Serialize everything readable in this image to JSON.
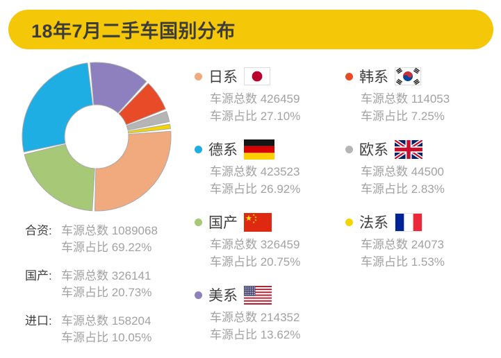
{
  "title": "18年7月二手车国别分布",
  "colors": {
    "header_accent": "#F4C708",
    "title_text": "#3C3C3C",
    "stats_text": "#A2A2A2",
    "label_text": "#3E3E3E",
    "slice_outline": "#A9A9A9"
  },
  "chart_data": {
    "type": "donut",
    "title": "18年7月二手车国别分布",
    "start_angle_deg": -6,
    "gap_deg": 2,
    "inner_radius_ratio": 0.43,
    "slices": [
      {
        "id": "us",
        "label": "美系",
        "pct": 13.62,
        "count": 214352,
        "color": "#8E7FBE"
      },
      {
        "id": "kr",
        "label": "韩系",
        "pct": 7.25,
        "count": 114053,
        "color": "#E74B28"
      },
      {
        "id": "eu",
        "label": "欧系",
        "pct": 2.83,
        "count": 44500,
        "color": "#B5B5B5"
      },
      {
        "id": "fr",
        "label": "法系",
        "pct": 1.53,
        "count": 24073,
        "color": "#F3D503"
      },
      {
        "id": "jp",
        "label": "日系",
        "pct": 27.1,
        "count": 426459,
        "color": "#F1A97E"
      },
      {
        "id": "cn",
        "label": "国产",
        "pct": 20.75,
        "count": 326459,
        "color": "#A6C877"
      },
      {
        "id": "de",
        "label": "德系",
        "pct": 26.92,
        "count": 423523,
        "color": "#1EAEE4"
      }
    ]
  },
  "summary": {
    "label_total": "车源总数",
    "label_share": "车源占比",
    "groups": [
      {
        "label": "合资:",
        "total": "1089068",
        "share": "69.22%"
      },
      {
        "label": "国产:",
        "total": "326141",
        "share": "20.73%"
      },
      {
        "label": "进口:",
        "total": "158204",
        "share": "10.05%"
      }
    ]
  },
  "legend": {
    "label_total": "车源总数",
    "label_share": "车源占比",
    "items": [
      {
        "id": "jp",
        "label": "日系",
        "flag": "japan-flag",
        "total": "426459",
        "share": "27.10%",
        "color": "#F1A97E"
      },
      {
        "id": "de",
        "label": "德系",
        "flag": "germany-flag",
        "total": "423523",
        "share": "26.92%",
        "color": "#1EAEE4"
      },
      {
        "id": "cn",
        "label": "国产",
        "flag": "china-flag",
        "total": "326459",
        "share": "20.75%",
        "color": "#A6C877"
      },
      {
        "id": "us",
        "label": "美系",
        "flag": "usa-flag",
        "total": "214352",
        "share": "13.62%",
        "color": "#8E7FBE"
      },
      {
        "id": "kr",
        "label": "韩系",
        "flag": "south-korea-flag",
        "total": "114053",
        "share": "7.25%",
        "color": "#E74B28"
      },
      {
        "id": "eu",
        "label": "欧系",
        "flag": "uk-flag",
        "total": "44500",
        "share": "2.83%",
        "color": "#B5B5B5"
      },
      {
        "id": "fr",
        "label": "法系",
        "flag": "france-flag",
        "total": "24073",
        "share": "1.53%",
        "color": "#F3D503"
      }
    ]
  }
}
